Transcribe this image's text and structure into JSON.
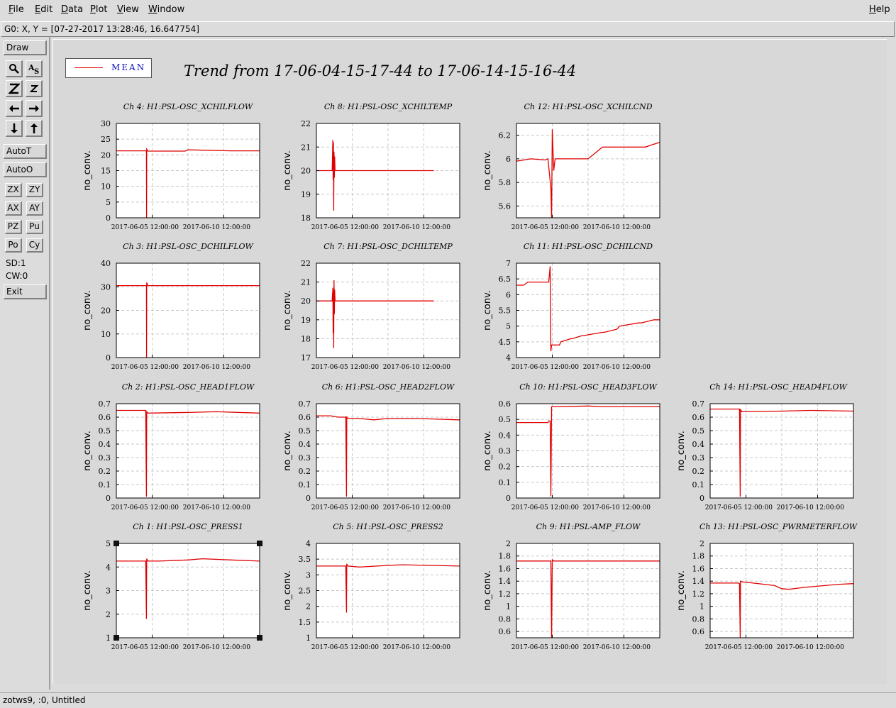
{
  "menubar": {
    "items": [
      {
        "first": "F",
        "rest": "ile"
      },
      {
        "first": "E",
        "rest": "dit"
      },
      {
        "first": "D",
        "rest": "ata"
      },
      {
        "first": "P",
        "rest": "lot"
      },
      {
        "first": "V",
        "rest": "iew"
      },
      {
        "first": "W",
        "rest": "indow"
      }
    ],
    "help": {
      "first": "H",
      "rest": "elp"
    }
  },
  "coord_readout": "G0: X, Y = [07-27-2017 13:28:46, 16.647754]",
  "toolbar": {
    "draw": "Draw",
    "auto_t": "AutoT",
    "auto_o": "AutoO",
    "small_buttons": [
      "ZX",
      "ZY",
      "AX",
      "AY",
      "PZ",
      "Pu",
      "Po",
      "Cy"
    ],
    "sd": "SD:1",
    "cw": "CW:0",
    "exit": "Exit",
    "icons": [
      "zoom-tool-icon",
      "text-tool-icon",
      "zoom-in-icon",
      "zoom-out-icon",
      "arrow-left-icon",
      "arrow-right-icon",
      "arrow-down-icon",
      "arrow-up-icon"
    ]
  },
  "legend": {
    "label": "MEAN",
    "color": "#e00000"
  },
  "plot_title": "Trend from 17-06-04-15-17-44 to 17-06-14-15-16-44",
  "status": "zotws9, :0, Untitled",
  "chart_data": [
    {
      "type": "line",
      "title": "Ch 4: H1:PSL-OSC_XCHILFLOW",
      "ylabel": "no_conv.",
      "ylim": [
        0,
        30
      ],
      "yticks": [
        0,
        5,
        10,
        15,
        20,
        25,
        30
      ],
      "xtick_labels": [
        "2017-06-05 12:00:00",
        "2017-06-10 12:00:00"
      ],
      "grid": true,
      "series": [
        {
          "x": [
            0,
            0.2,
            0.21,
            0.211,
            0.212,
            0.22,
            0.48,
            0.5,
            0.8,
            1
          ],
          "y": [
            21.3,
            21.3,
            21.3,
            0,
            21.8,
            21.2,
            21.2,
            21.6,
            21.3,
            21.3
          ]
        }
      ]
    },
    {
      "type": "line",
      "title": "Ch 8: H1:PSL-OSC_XCHILTEMP",
      "ylabel": "no_conv.",
      "ylim": [
        18,
        22
      ],
      "yticks": [
        18,
        19,
        20,
        21,
        22
      ],
      "xtick_labels": [
        "2017-06-05 12:00:00",
        "2017-06-10 12:00:00"
      ],
      "grid": true,
      "series": [
        {
          "x": [
            0,
            0.11,
            0.115,
            0.117,
            0.119,
            0.121,
            0.123,
            0.125,
            0.127,
            0.13,
            0.2,
            0.5,
            0.8,
            0.82
          ],
          "y": [
            20,
            20,
            21.3,
            19.6,
            21.2,
            18.3,
            20.8,
            19.7,
            20.6,
            20,
            20,
            20,
            20,
            20
          ]
        }
      ]
    },
    {
      "type": "line",
      "title": "Ch 12: H1:PSL-OSC_XCHILCND",
      "ylabel": "no_conv.",
      "ylim": [
        5.5,
        6.3
      ],
      "yticks": [
        5.6,
        5.8,
        6,
        6.2
      ],
      "xtick_labels": [
        "2017-06-05 12:00:00",
        "2017-06-10 12:00:00"
      ],
      "grid": true,
      "series": [
        {
          "x": [
            0,
            0.1,
            0.2,
            0.22,
            0.24,
            0.245,
            0.25,
            0.26,
            0.27,
            0.5,
            0.55,
            0.6,
            0.75,
            0.9,
            0.95,
            1
          ],
          "y": [
            5.98,
            6.0,
            5.99,
            6.0,
            5.75,
            5.5,
            6.25,
            5.9,
            6.0,
            6.0,
            6.05,
            6.1,
            6.1,
            6.1,
            6.12,
            6.14
          ]
        }
      ]
    },
    {
      "type": "line",
      "title": "Ch 3: H1:PSL-OSC_DCHILFLOW",
      "ylabel": "no_conv.",
      "ylim": [
        0,
        40
      ],
      "yticks": [
        0,
        10,
        20,
        30,
        40
      ],
      "xtick_labels": [
        "2017-06-05 12:00:00",
        "2017-06-10 12:00:00"
      ],
      "grid": true,
      "series": [
        {
          "x": [
            0,
            0.2,
            0.21,
            0.211,
            0.212,
            0.22,
            1
          ],
          "y": [
            30.5,
            30.5,
            30.5,
            0,
            31.8,
            30.5,
            30.5
          ]
        }
      ]
    },
    {
      "type": "line",
      "title": "Ch 7: H1:PSL-OSC_DCHILTEMP",
      "ylabel": "no_conv.",
      "ylim": [
        17,
        22
      ],
      "yticks": [
        17,
        18,
        19,
        20,
        21,
        22
      ],
      "xtick_labels": [
        "2017-06-05 12:00:00",
        "2017-06-10 12:00:00"
      ],
      "grid": true,
      "series": [
        {
          "x": [
            0,
            0.11,
            0.115,
            0.117,
            0.119,
            0.121,
            0.123,
            0.125,
            0.127,
            0.13,
            0.5,
            0.82
          ],
          "y": [
            20,
            20,
            20.7,
            18.3,
            20.5,
            17.5,
            21.1,
            19.3,
            20.6,
            20,
            20,
            20
          ]
        }
      ]
    },
    {
      "type": "line",
      "title": "Ch 11: H1:PSL-OSC_DCHILCND",
      "ylabel": "no_conv.",
      "ylim": [
        4,
        7
      ],
      "yticks": [
        4,
        4.5,
        5,
        5.5,
        6,
        6.5,
        7
      ],
      "xtick_labels": [
        "2017-06-05 12:00:00",
        "2017-06-10 12:00:00"
      ],
      "grid": true,
      "series": [
        {
          "x": [
            0,
            0.05,
            0.08,
            0.18,
            0.2,
            0.225,
            0.235,
            0.24,
            0.245,
            0.25,
            0.3,
            0.31,
            0.38,
            0.39,
            0.46,
            0.47,
            0.6,
            0.61,
            0.7,
            0.72,
            0.85,
            0.87,
            0.96,
            1
          ],
          "y": [
            6.3,
            6.3,
            6.4,
            6.4,
            6.4,
            6.4,
            6.9,
            4.2,
            4.4,
            4.4,
            4.4,
            4.5,
            4.6,
            4.6,
            4.7,
            4.7,
            4.8,
            4.8,
            4.9,
            5.0,
            5.1,
            5.1,
            5.2,
            5.2
          ]
        }
      ]
    },
    {
      "type": "line",
      "title": "Ch 2: H1:PSL-OSC_HEAD1FLOW",
      "ylabel": "no_conv.",
      "ylim": [
        0,
        0.7
      ],
      "yticks": [
        0,
        0.1,
        0.2,
        0.3,
        0.4,
        0.5,
        0.6,
        0.7
      ],
      "xtick_labels": [
        "2017-06-05 12:00:00",
        "2017-06-10 12:00:00"
      ],
      "grid": true,
      "series": [
        {
          "x": [
            0,
            0.2,
            0.205,
            0.21,
            0.212,
            0.22,
            0.5,
            0.7,
            1
          ],
          "y": [
            0.65,
            0.65,
            0.65,
            0.01,
            0.64,
            0.63,
            0.635,
            0.64,
            0.63
          ]
        }
      ]
    },
    {
      "type": "line",
      "title": "Ch 6: H1:PSL-OSC_HEAD2FLOW",
      "ylabel": "no_conv.",
      "ylim": [
        0,
        0.7
      ],
      "yticks": [
        0,
        0.1,
        0.2,
        0.3,
        0.4,
        0.5,
        0.6,
        0.7
      ],
      "xtick_labels": [
        "2017-06-05 12:00:00",
        "2017-06-10 12:00:00"
      ],
      "grid": true,
      "series": [
        {
          "x": [
            0,
            0.1,
            0.15,
            0.2,
            0.205,
            0.21,
            0.212,
            0.22,
            0.3,
            0.4,
            0.5,
            0.7,
            0.85,
            1
          ],
          "y": [
            0.61,
            0.61,
            0.6,
            0.6,
            0.6,
            0.01,
            0.6,
            0.59,
            0.59,
            0.58,
            0.59,
            0.59,
            0.585,
            0.58
          ]
        }
      ]
    },
    {
      "type": "line",
      "title": "Ch 10: H1:PSL-OSC_HEAD3FLOW",
      "ylabel": "no_conv.",
      "ylim": [
        0,
        0.6
      ],
      "yticks": [
        0,
        0.1,
        0.2,
        0.3,
        0.4,
        0.5,
        0.6
      ],
      "xtick_labels": [
        "2017-06-05 12:00:00",
        "2017-06-10 12:00:00"
      ],
      "grid": true,
      "series": [
        {
          "x": [
            0,
            0.2,
            0.22,
            0.225,
            0.235,
            0.24,
            0.245,
            0.3,
            0.5,
            0.6,
            1
          ],
          "y": [
            0.48,
            0.48,
            0.48,
            0.49,
            0.49,
            0.01,
            0.58,
            0.58,
            0.585,
            0.58,
            0.58
          ]
        }
      ]
    },
    {
      "type": "line",
      "title": "Ch 14: H1:PSL-OSC_HEAD4FLOW",
      "ylabel": "no_conv.",
      "ylim": [
        0,
        0.7
      ],
      "yticks": [
        0,
        0.1,
        0.2,
        0.3,
        0.4,
        0.5,
        0.6,
        0.7
      ],
      "xtick_labels": [
        "2017-06-05 12:00:00",
        "2017-06-10 12:00:00"
      ],
      "grid": true,
      "series": [
        {
          "x": [
            0,
            0.2,
            0.205,
            0.21,
            0.212,
            0.22,
            0.5,
            0.7,
            1
          ],
          "y": [
            0.66,
            0.66,
            0.66,
            0.01,
            0.66,
            0.64,
            0.645,
            0.65,
            0.645
          ]
        }
      ]
    },
    {
      "type": "line",
      "title": "Ch 1: H1:PSL-OSC_PRESS1",
      "ylabel": "no_conv.",
      "ylim": [
        1,
        5
      ],
      "yticks": [
        1,
        2,
        3,
        4,
        5
      ],
      "xtick_labels": [
        "2017-06-05 12:00:00",
        "2017-06-10 12:00:00"
      ],
      "grid": true,
      "selected": true,
      "series": [
        {
          "x": [
            0,
            0.2,
            0.205,
            0.21,
            0.212,
            0.22,
            0.3,
            0.5,
            0.6,
            0.8,
            1
          ],
          "y": [
            4.25,
            4.25,
            4.25,
            1.8,
            4.35,
            4.25,
            4.25,
            4.3,
            4.35,
            4.3,
            4.25
          ]
        }
      ]
    },
    {
      "type": "line",
      "title": "Ch 5: H1:PSL-OSC_PRESS2",
      "ylabel": "no_conv.",
      "ylim": [
        1,
        4
      ],
      "yticks": [
        1,
        1.5,
        2,
        2.5,
        3,
        3.5,
        4
      ],
      "xtick_labels": [
        "2017-06-05 12:00:00",
        "2017-06-10 12:00:00"
      ],
      "grid": true,
      "series": [
        {
          "x": [
            0,
            0.2,
            0.205,
            0.21,
            0.212,
            0.22,
            0.3,
            0.5,
            0.6,
            0.8,
            1
          ],
          "y": [
            3.28,
            3.28,
            3.28,
            1.8,
            3.35,
            3.28,
            3.25,
            3.3,
            3.32,
            3.3,
            3.28
          ]
        }
      ]
    },
    {
      "type": "line",
      "title": "Ch 9: H1:PSL-AMP_FLOW",
      "ylabel": "no_conv.",
      "ylim": [
        0.5,
        2
      ],
      "yticks": [
        0.6,
        0.8,
        1,
        1.2,
        1.4,
        1.6,
        1.8,
        2
      ],
      "xtick_labels": [
        "2017-06-05 12:00:00",
        "2017-06-10 12:00:00"
      ],
      "grid": true,
      "series": [
        {
          "x": [
            0,
            0.22,
            0.24,
            0.245,
            0.25,
            0.26,
            0.5,
            1
          ],
          "y": [
            1.72,
            1.72,
            1.72,
            0.5,
            1.74,
            1.72,
            1.72,
            1.72
          ]
        }
      ]
    },
    {
      "type": "line",
      "title": "Ch 13: H1:PSL-OSC_PWRMETERFLOW",
      "ylabel": "no_conv.",
      "ylim": [
        0.5,
        2
      ],
      "yticks": [
        0.6,
        0.8,
        1,
        1.2,
        1.4,
        1.6,
        1.8,
        2
      ],
      "xtick_labels": [
        "2017-06-05 12:00:00",
        "2017-06-10 12:00:00"
      ],
      "grid": true,
      "series": [
        {
          "x": [
            0,
            0.15,
            0.2,
            0.205,
            0.21,
            0.212,
            0.22,
            0.3,
            0.45,
            0.5,
            0.55,
            0.65,
            0.8,
            0.9,
            1
          ],
          "y": [
            1.37,
            1.37,
            1.37,
            1.36,
            0.5,
            1.4,
            1.39,
            1.37,
            1.33,
            1.28,
            1.27,
            1.3,
            1.33,
            1.35,
            1.36
          ]
        }
      ]
    }
  ]
}
